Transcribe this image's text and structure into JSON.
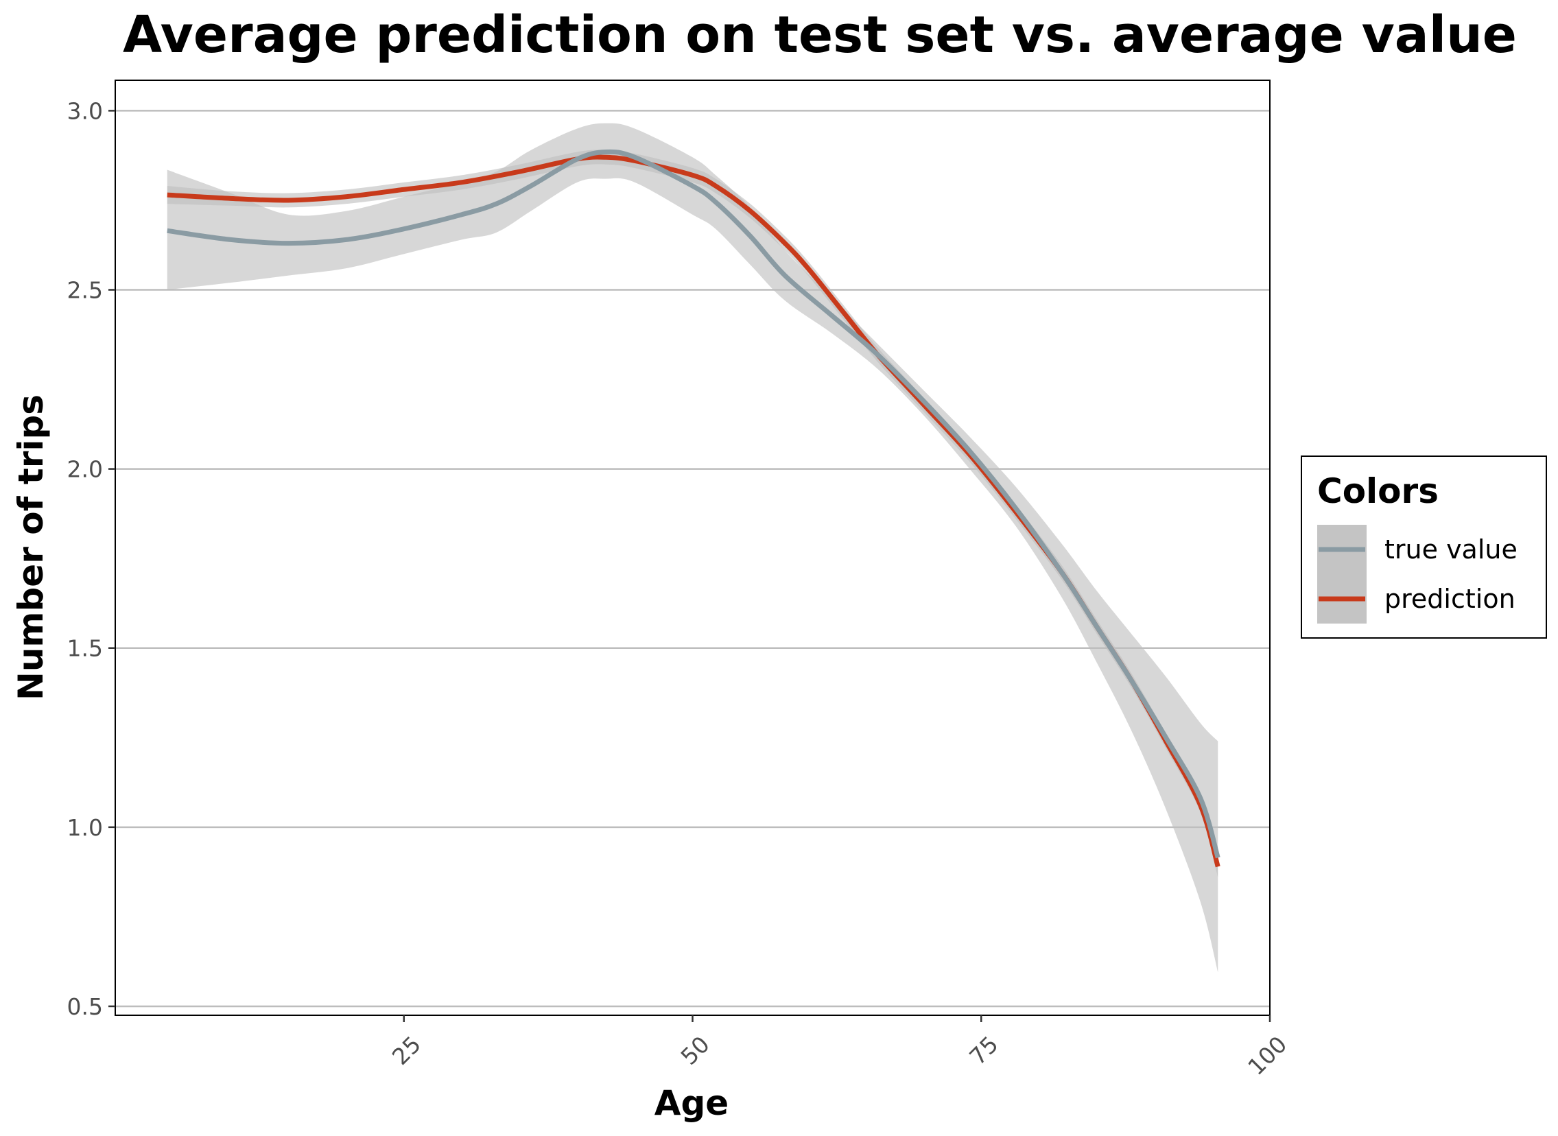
{
  "chart_data": {
    "type": "line",
    "title": "Average prediction on test set vs. average value",
    "xlabel": "Age",
    "ylabel": "Number of trips",
    "xlim": [
      0,
      100
    ],
    "ylim": [
      0.475,
      3.085
    ],
    "xticks": [
      "25",
      "50",
      "75",
      "100"
    ],
    "xtick_values": [
      25,
      50,
      75,
      100
    ],
    "yticks": [
      "0.5",
      "1.0",
      "1.5",
      "2.0",
      "2.5",
      "3.0"
    ],
    "ytick_values": [
      0.5,
      1.0,
      1.5,
      2.0,
      2.5,
      3.0
    ],
    "grid": "horizontal",
    "legend": {
      "title": "Colors",
      "placement": "right",
      "entries": [
        "true value",
        "prediction"
      ]
    },
    "series": [
      {
        "name": "true value",
        "color": "#8a9ba3",
        "x": [
          4.5,
          10,
          15,
          20,
          25,
          30,
          33,
          36,
          40,
          42.5,
          45,
          50,
          52,
          55,
          58,
          62,
          66,
          70,
          74,
          78,
          82,
          85,
          88,
          91,
          94,
          95.5
        ],
        "y": [
          2.665,
          2.64,
          2.63,
          2.64,
          2.67,
          2.71,
          2.74,
          2.79,
          2.865,
          2.885,
          2.87,
          2.79,
          2.745,
          2.65,
          2.54,
          2.43,
          2.32,
          2.19,
          2.05,
          1.89,
          1.71,
          1.56,
          1.41,
          1.25,
          1.08,
          0.915
        ],
        "band_upper": [
          2.835,
          2.77,
          2.71,
          2.72,
          2.76,
          2.8,
          2.83,
          2.89,
          2.95,
          2.965,
          2.95,
          2.87,
          2.82,
          2.73,
          2.61,
          2.48,
          2.35,
          2.22,
          2.09,
          1.95,
          1.79,
          1.66,
          1.54,
          1.42,
          1.29,
          1.24
        ],
        "band_lower": [
          2.5,
          2.52,
          2.54,
          2.56,
          2.6,
          2.64,
          2.66,
          2.72,
          2.8,
          2.81,
          2.8,
          2.71,
          2.67,
          2.57,
          2.47,
          2.38,
          2.28,
          2.15,
          2.0,
          1.84,
          1.64,
          1.46,
          1.27,
          1.05,
          0.79,
          0.595
        ]
      },
      {
        "name": "prediction",
        "color": "#c83a1b",
        "x": [
          4.5,
          10,
          15,
          20,
          25,
          30,
          35,
          40,
          42.5,
          45,
          50,
          52,
          55,
          58,
          60,
          63,
          66,
          70,
          74,
          78,
          82,
          85,
          88,
          91,
          94,
          95.5
        ],
        "y": [
          2.765,
          2.755,
          2.75,
          2.76,
          2.78,
          2.8,
          2.83,
          2.865,
          2.87,
          2.86,
          2.82,
          2.79,
          2.72,
          2.63,
          2.56,
          2.44,
          2.32,
          2.18,
          2.04,
          1.88,
          1.71,
          1.56,
          1.41,
          1.24,
          1.06,
          0.89
        ],
        "band_upper": [
          2.79,
          2.775,
          2.77,
          2.78,
          2.8,
          2.82,
          2.85,
          2.885,
          2.89,
          2.88,
          2.84,
          2.81,
          2.74,
          2.65,
          2.58,
          2.46,
          2.34,
          2.2,
          2.06,
          1.9,
          1.73,
          1.58,
          1.43,
          1.26,
          1.08,
          0.92
        ],
        "band_lower": [
          2.74,
          2.735,
          2.73,
          2.74,
          2.76,
          2.78,
          2.81,
          2.845,
          2.85,
          2.84,
          2.8,
          2.77,
          2.7,
          2.61,
          2.54,
          2.42,
          2.3,
          2.16,
          2.02,
          1.86,
          1.69,
          1.54,
          1.39,
          1.22,
          1.04,
          0.86
        ]
      }
    ],
    "band_color": "#bebebe"
  }
}
